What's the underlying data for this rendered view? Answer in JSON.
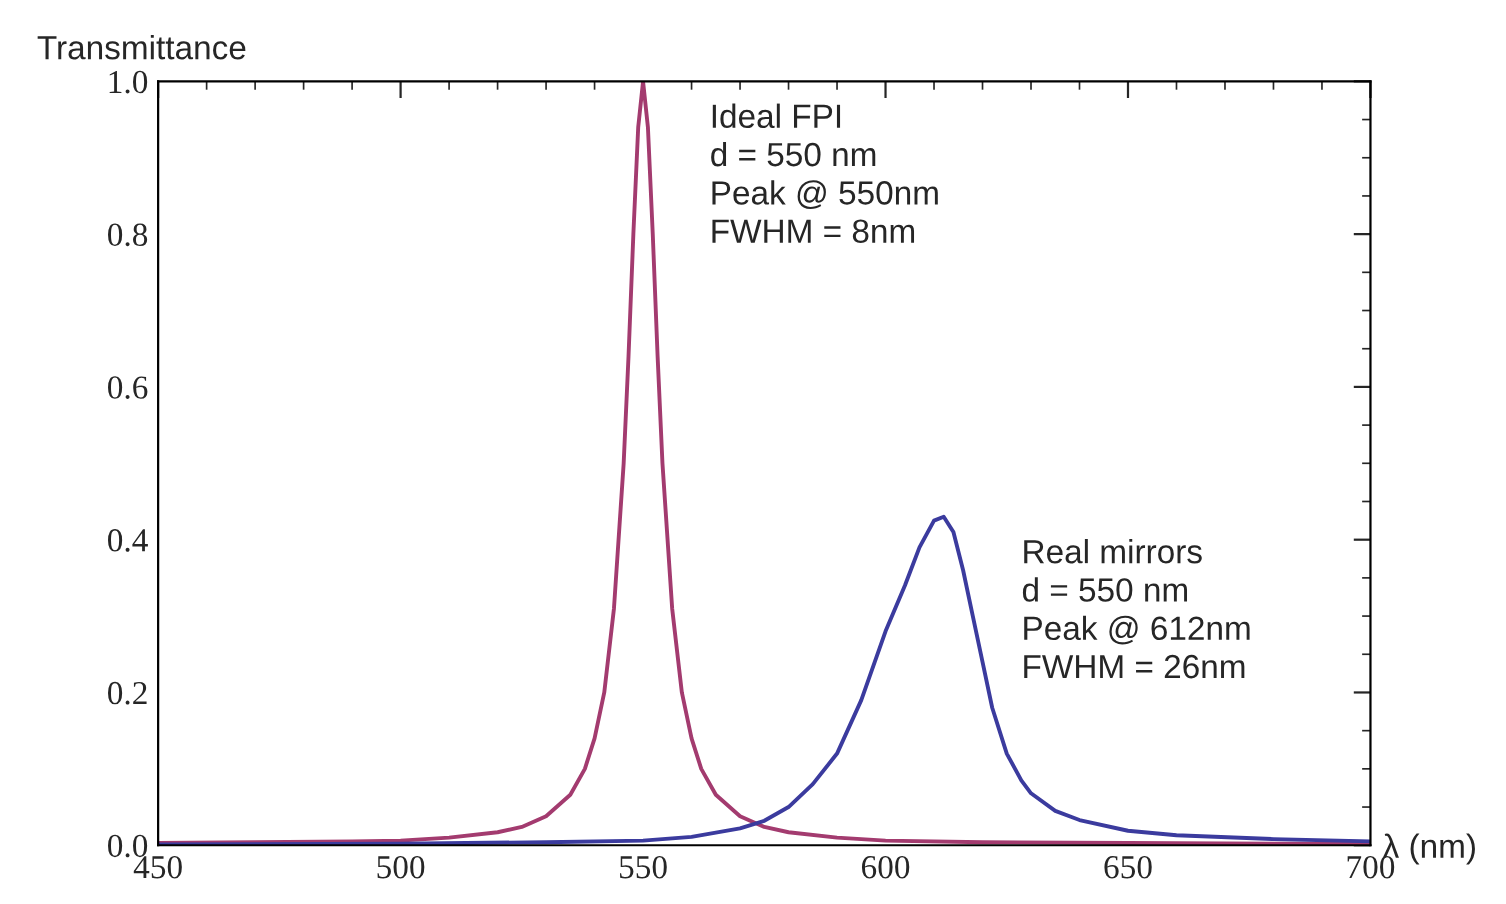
{
  "chart_data": {
    "type": "line",
    "xlabel": "λ (nm)",
    "ylabel": "Transmittance",
    "xlim": [
      450,
      700
    ],
    "xticks": [
      450,
      500,
      550,
      600,
      650,
      700
    ],
    "ylim": [
      0,
      1
    ],
    "yticks": [
      {
        "value": 0,
        "label": "0.0"
      },
      {
        "value": 0.2,
        "label": "0.2"
      },
      {
        "value": 0.4,
        "label": "0.4"
      },
      {
        "value": 0.6,
        "label": "0.6"
      },
      {
        "value": 0.8,
        "label": "0.8"
      },
      {
        "value": 1,
        "label": "1.0"
      }
    ],
    "grid": false,
    "legend": false,
    "marker": "none",
    "line_style": "solid",
    "series": [
      {
        "color": "#a33b6f",
        "x": [
          450,
          470,
          490,
          500,
          510,
          520,
          525,
          530,
          535,
          538,
          540,
          542,
          544,
          546,
          547,
          548,
          549,
          550,
          551,
          552,
          553,
          554,
          556,
          558,
          560,
          562,
          565,
          570,
          575,
          580,
          590,
          600,
          620,
          650,
          680,
          700
        ],
        "values": [
          0.003,
          0.004,
          0.005,
          0.006,
          0.01,
          0.017,
          0.024,
          0.038,
          0.066,
          0.1,
          0.14,
          0.2,
          0.31,
          0.5,
          0.64,
          0.8,
          0.94,
          1.0,
          0.94,
          0.8,
          0.64,
          0.5,
          0.31,
          0.2,
          0.14,
          0.1,
          0.066,
          0.038,
          0.024,
          0.017,
          0.01,
          0.006,
          0.004,
          0.003,
          0.002,
          0.002
        ]
      },
      {
        "color": "#3b3b9e",
        "x": [
          450,
          500,
          530,
          550,
          560,
          570,
          575,
          580,
          585,
          590,
          595,
          600,
          604,
          607,
          610,
          612,
          614,
          616,
          618,
          620,
          622,
          625,
          628,
          630,
          635,
          640,
          650,
          660,
          680,
          700
        ],
        "values": [
          0.001,
          0.002,
          0.004,
          0.006,
          0.011,
          0.022,
          0.032,
          0.05,
          0.08,
          0.12,
          0.19,
          0.28,
          0.34,
          0.39,
          0.425,
          0.43,
          0.41,
          0.36,
          0.3,
          0.24,
          0.18,
          0.12,
          0.085,
          0.068,
          0.045,
          0.033,
          0.019,
          0.013,
          0.008,
          0.005
        ]
      }
    ],
    "annotations": [
      {
        "text": "Ideal FPI\nd = 550 nm\nPeak @ 550nm\nFWHM = 8nm",
        "x": 550,
        "y": 1.0
      },
      {
        "text": "Real mirrors\nd = 550 nm\nPeak @ 612nm\nFWHM = 26nm",
        "x": 612,
        "y": 0.43
      }
    ]
  }
}
